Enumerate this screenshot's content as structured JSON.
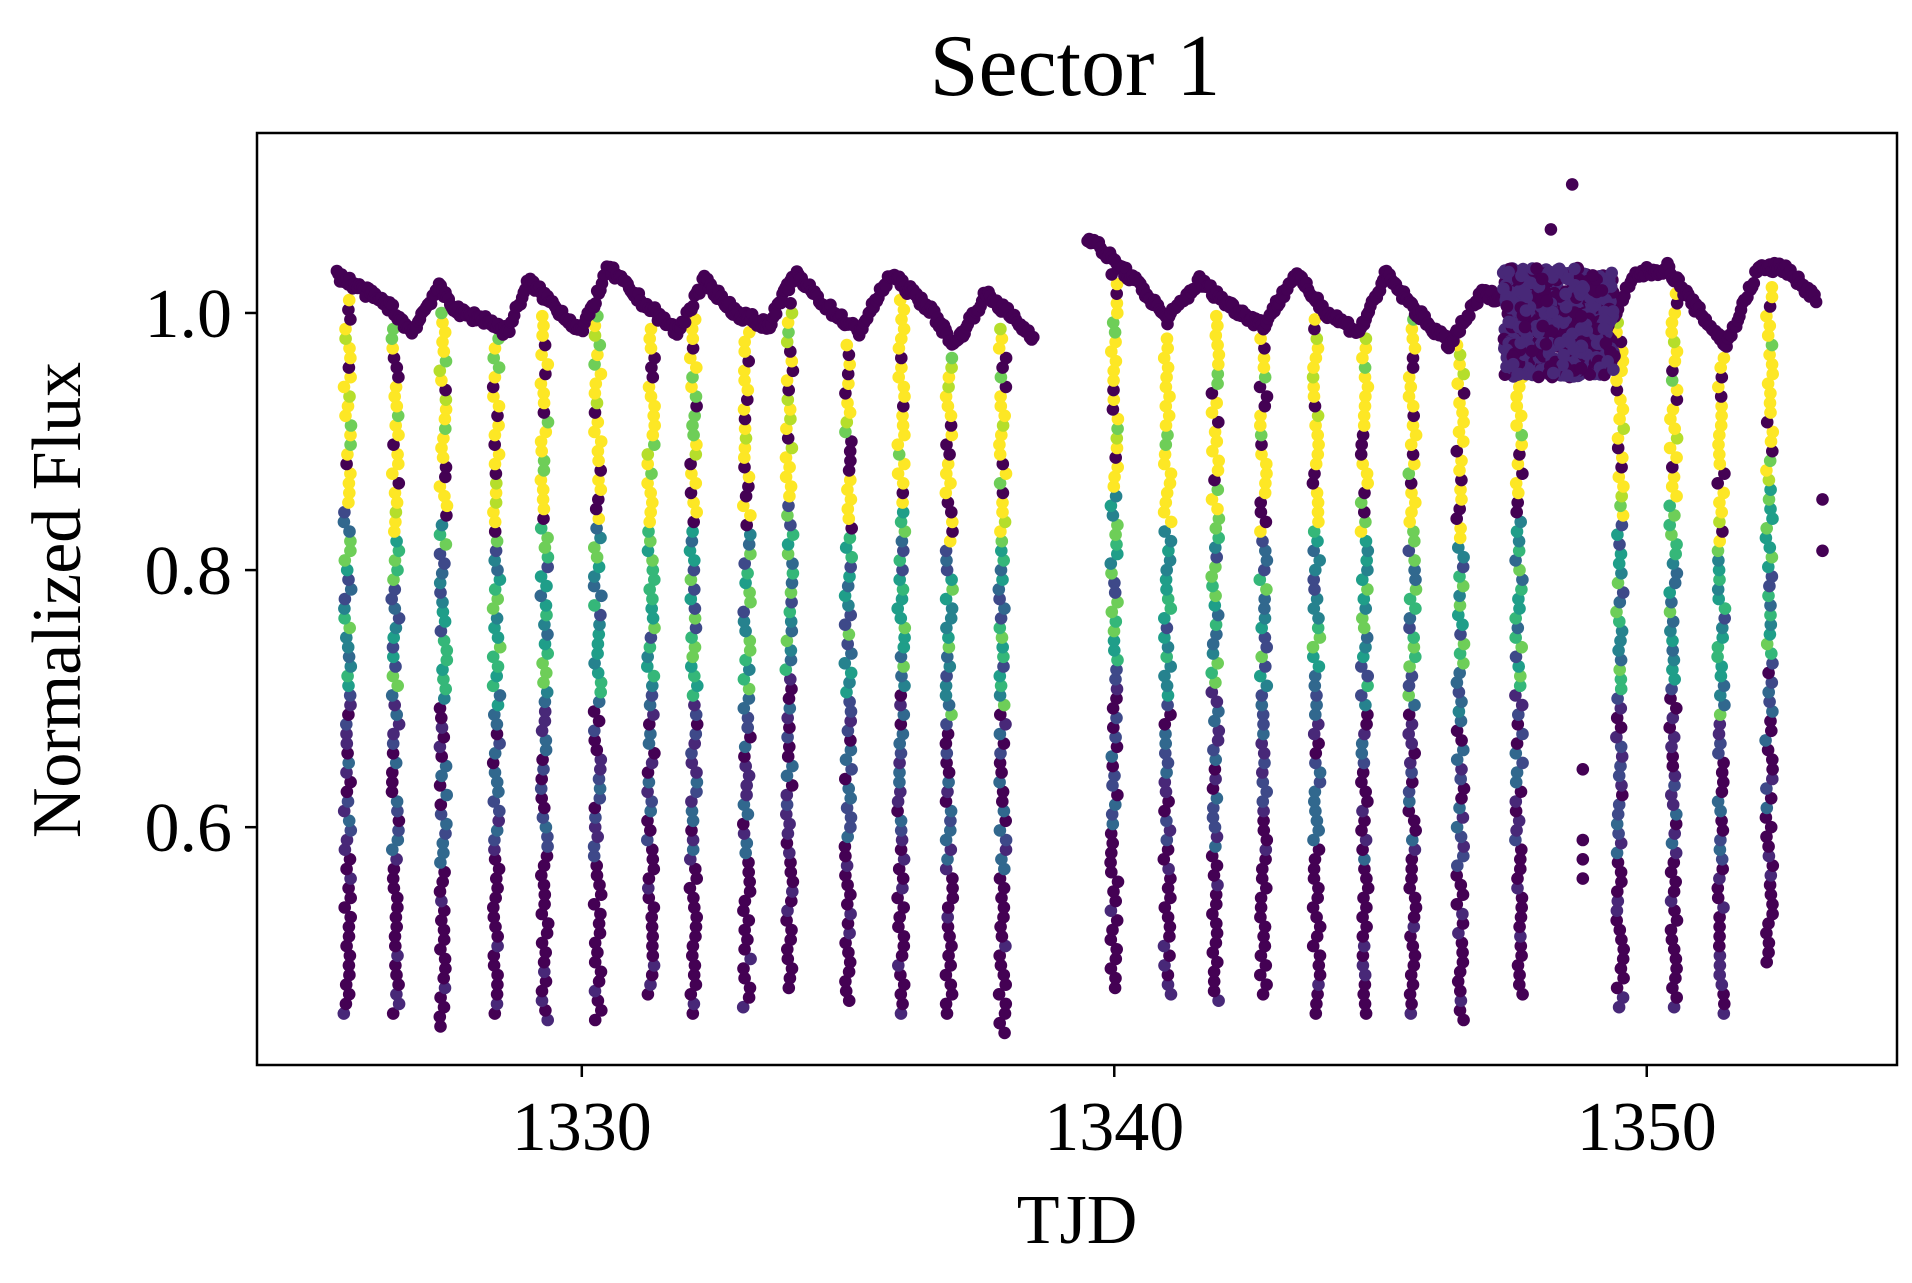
{
  "chart_data": {
    "type": "scatter",
    "title": "Sector 1",
    "xlabel": "TJD",
    "ylabel": "Normalized Flux",
    "xlim": [
      1323.9,
      1354.7
    ],
    "ylim": [
      0.415,
      1.14
    ],
    "xticks": [
      1330,
      1340,
      1350
    ],
    "xtick_labels": [
      "1330",
      "1340",
      "1350"
    ],
    "yticks": [
      0.6,
      0.8,
      1.0
    ],
    "ytick_labels": [
      "0.6",
      "0.8",
      "1.0"
    ],
    "grid": false,
    "legend": "none",
    "colormap": "viridis",
    "colormap_colors": [
      "#440154",
      "#482878",
      "#3e4989",
      "#31688e",
      "#26828e",
      "#1f9e89",
      "#35b779",
      "#6ece58",
      "#b5de2b",
      "#fde725"
    ],
    "baseline": [
      [
        1325.4,
        1.03
      ],
      [
        1325.8,
        1.02
      ],
      [
        1326.4,
        1.005
      ],
      [
        1326.8,
        0.985
      ],
      [
        1327.3,
        1.02
      ],
      [
        1327.7,
        1.0
      ],
      [
        1328.2,
        0.995
      ],
      [
        1328.6,
        0.985
      ],
      [
        1329.0,
        1.025
      ],
      [
        1329.5,
        1.005
      ],
      [
        1330.0,
        0.985
      ],
      [
        1330.5,
        1.035
      ],
      [
        1331.1,
        1.01
      ],
      [
        1331.8,
        0.985
      ],
      [
        1332.3,
        1.025
      ],
      [
        1332.9,
        1.0
      ],
      [
        1333.5,
        0.99
      ],
      [
        1334.0,
        1.03
      ],
      [
        1334.6,
        1.005
      ],
      [
        1335.2,
        0.985
      ],
      [
        1335.8,
        1.03
      ],
      [
        1336.5,
        1.005
      ],
      [
        1337.0,
        0.975
      ],
      [
        1337.6,
        1.015
      ],
      [
        1338.0,
        1.0
      ],
      [
        1338.5,
        0.98
      ],
      [
        1339.5,
        1.06
      ],
      [
        1340.0,
        1.04
      ],
      [
        1340.5,
        1.02
      ],
      [
        1341.0,
        0.995
      ],
      [
        1341.6,
        1.025
      ],
      [
        1342.2,
        1.005
      ],
      [
        1342.8,
        0.99
      ],
      [
        1343.4,
        1.03
      ],
      [
        1344.0,
        1.0
      ],
      [
        1344.6,
        0.985
      ],
      [
        1345.1,
        1.03
      ],
      [
        1345.7,
        1.0
      ],
      [
        1346.3,
        0.975
      ],
      [
        1346.9,
        1.015
      ],
      [
        1347.5,
        1.01
      ],
      [
        1348.0,
        0.99
      ],
      [
        1348.6,
        1.0
      ],
      [
        1349.2,
        0.985
      ],
      [
        1349.8,
        1.03
      ],
      [
        1350.4,
        1.035
      ],
      [
        1350.9,
        1.005
      ],
      [
        1351.5,
        0.975
      ],
      [
        1352.1,
        1.035
      ],
      [
        1352.6,
        1.035
      ],
      [
        1353.2,
        1.01
      ]
    ],
    "dips": [
      {
        "x": 1325.6,
        "min": 0.455
      },
      {
        "x": 1326.5,
        "min": 0.455
      },
      {
        "x": 1327.4,
        "min": 0.445
      },
      {
        "x": 1328.4,
        "min": 0.455
      },
      {
        "x": 1329.3,
        "min": 0.45
      },
      {
        "x": 1330.3,
        "min": 0.45
      },
      {
        "x": 1331.3,
        "min": 0.47
      },
      {
        "x": 1332.1,
        "min": 0.455
      },
      {
        "x": 1333.1,
        "min": 0.46
      },
      {
        "x": 1333.9,
        "min": 0.475
      },
      {
        "x": 1335.0,
        "min": 0.465
      },
      {
        "x": 1336.0,
        "min": 0.455
      },
      {
        "x": 1336.9,
        "min": 0.455
      },
      {
        "x": 1337.9,
        "min": 0.44
      },
      {
        "x": 1340.0,
        "min": 0.475
      },
      {
        "x": 1341.0,
        "min": 0.47
      },
      {
        "x": 1341.9,
        "min": 0.465
      },
      {
        "x": 1342.8,
        "min": 0.47
      },
      {
        "x": 1343.8,
        "min": 0.455
      },
      {
        "x": 1344.7,
        "min": 0.455
      },
      {
        "x": 1345.6,
        "min": 0.455
      },
      {
        "x": 1346.5,
        "min": 0.45
      },
      {
        "x": 1347.6,
        "min": 0.47
      },
      {
        "x": 1349.5,
        "min": 0.46
      },
      {
        "x": 1350.5,
        "min": 0.46
      },
      {
        "x": 1351.4,
        "min": 0.455
      },
      {
        "x": 1352.3,
        "min": 0.495
      }
    ],
    "noise_region": {
      "x": [
        1347.3,
        1349.4
      ],
      "y": [
        0.95,
        1.035
      ]
    },
    "outliers": [
      [
        1348.6,
        1.1
      ],
      [
        1348.2,
        1.065
      ],
      [
        1348.8,
        0.645
      ],
      [
        1348.8,
        0.59
      ],
      [
        1348.8,
        0.575
      ],
      [
        1348.8,
        0.56
      ],
      [
        1353.3,
        0.815
      ],
      [
        1353.3,
        0.855
      ]
    ]
  }
}
